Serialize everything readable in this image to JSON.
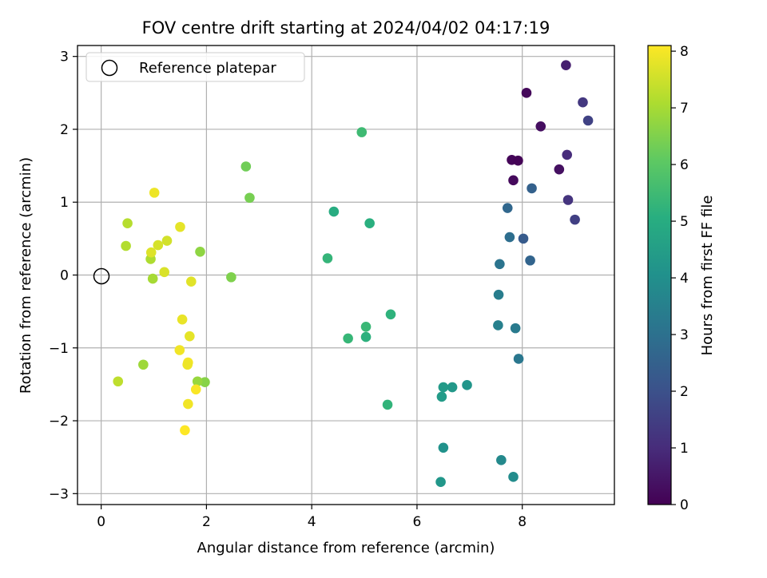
{
  "chart_data": {
    "type": "scatter",
    "title": "FOV centre drift starting at 2024/04/02 04:17:19",
    "xlabel": "Angular distance from reference (arcmin)",
    "ylabel": "Rotation from reference (arcmin)",
    "xlim": [
      -0.45,
      9.75
    ],
    "ylim": [
      -3.15,
      3.15
    ],
    "xticks": [
      0,
      2,
      4,
      6,
      8
    ],
    "yticks": [
      -3,
      -2,
      -1,
      0,
      1,
      2,
      3
    ],
    "grid": true,
    "legend": {
      "placement": "upper-left",
      "entries": [
        "Reference platepar"
      ]
    },
    "reference_point": {
      "label": "Reference platepar",
      "x": 0,
      "y": 0
    },
    "colorbar": {
      "label": "Hours from first FF file",
      "colormap": "viridis",
      "range": [
        0,
        8.1
      ],
      "ticks": [
        0,
        1,
        2,
        3,
        4,
        5,
        6,
        7,
        8
      ]
    },
    "points": [
      {
        "x": 8.08,
        "y": 2.5,
        "h": 0.15
      },
      {
        "x": 8.35,
        "y": 2.04,
        "h": 0.3
      },
      {
        "x": 7.8,
        "y": 1.58,
        "h": 0.1
      },
      {
        "x": 7.92,
        "y": 1.57,
        "h": 0.05
      },
      {
        "x": 7.83,
        "y": 1.3,
        "h": 0.2
      },
      {
        "x": 8.7,
        "y": 1.45,
        "h": 0.35
      },
      {
        "x": 8.83,
        "y": 2.88,
        "h": 0.7
      },
      {
        "x": 9.15,
        "y": 2.37,
        "h": 1.3
      },
      {
        "x": 9.25,
        "y": 2.12,
        "h": 1.6
      },
      {
        "x": 8.85,
        "y": 1.65,
        "h": 1.0
      },
      {
        "x": 8.87,
        "y": 1.03,
        "h": 1.2
      },
      {
        "x": 9.0,
        "y": 0.76,
        "h": 1.5
      },
      {
        "x": 8.18,
        "y": 1.19,
        "h": 2.5
      },
      {
        "x": 7.72,
        "y": 0.92,
        "h": 2.7
      },
      {
        "x": 7.76,
        "y": 0.52,
        "h": 2.9
      },
      {
        "x": 8.02,
        "y": 0.5,
        "h": 2.3
      },
      {
        "x": 8.15,
        "y": 0.2,
        "h": 2.6
      },
      {
        "x": 7.57,
        "y": 0.15,
        "h": 3.1
      },
      {
        "x": 7.55,
        "y": -0.27,
        "h": 3.4
      },
      {
        "x": 7.54,
        "y": -0.69,
        "h": 3.5
      },
      {
        "x": 7.87,
        "y": -0.73,
        "h": 3.3
      },
      {
        "x": 7.93,
        "y": -1.15,
        "h": 3.2
      },
      {
        "x": 6.95,
        "y": -1.51,
        "h": 4.2
      },
      {
        "x": 6.67,
        "y": -1.54,
        "h": 4.3
      },
      {
        "x": 6.5,
        "y": -1.54,
        "h": 4.35
      },
      {
        "x": 6.47,
        "y": -1.67,
        "h": 4.4
      },
      {
        "x": 6.5,
        "y": -2.37,
        "h": 4.1
      },
      {
        "x": 6.45,
        "y": -2.84,
        "h": 4.25
      },
      {
        "x": 7.6,
        "y": -2.54,
        "h": 3.8
      },
      {
        "x": 7.83,
        "y": -2.77,
        "h": 3.9
      },
      {
        "x": 4.95,
        "y": 1.96,
        "h": 5.5
      },
      {
        "x": 4.42,
        "y": 0.87,
        "h": 5.0
      },
      {
        "x": 5.1,
        "y": 0.71,
        "h": 5.1
      },
      {
        "x": 4.3,
        "y": 0.23,
        "h": 5.3
      },
      {
        "x": 5.5,
        "y": -0.54,
        "h": 5.2
      },
      {
        "x": 5.03,
        "y": -0.71,
        "h": 5.4
      },
      {
        "x": 5.03,
        "y": -0.85,
        "h": 5.15
      },
      {
        "x": 4.69,
        "y": -0.87,
        "h": 5.35
      },
      {
        "x": 5.44,
        "y": -1.78,
        "h": 5.25
      },
      {
        "x": 2.75,
        "y": 1.49,
        "h": 6.3
      },
      {
        "x": 2.82,
        "y": 1.06,
        "h": 6.4
      },
      {
        "x": 2.47,
        "y": -0.03,
        "h": 6.5
      },
      {
        "x": 1.88,
        "y": 0.32,
        "h": 6.7
      },
      {
        "x": 1.97,
        "y": -1.47,
        "h": 6.6
      },
      {
        "x": 1.83,
        "y": -1.46,
        "h": 6.8
      },
      {
        "x": 0.8,
        "y": -1.23,
        "h": 6.9
      },
      {
        "x": 0.5,
        "y": 0.71,
        "h": 7.2
      },
      {
        "x": 0.47,
        "y": 0.4,
        "h": 7.15
      },
      {
        "x": 0.94,
        "y": 0.22,
        "h": 7.1
      },
      {
        "x": 0.98,
        "y": -0.05,
        "h": 7.0
      },
      {
        "x": 0.32,
        "y": -1.46,
        "h": 7.3
      },
      {
        "x": 1.01,
        "y": 1.13,
        "h": 7.9
      },
      {
        "x": 1.5,
        "y": 0.66,
        "h": 7.8
      },
      {
        "x": 0.95,
        "y": 0.31,
        "h": 7.7
      },
      {
        "x": 1.08,
        "y": 0.41,
        "h": 7.6
      },
      {
        "x": 1.25,
        "y": 0.47,
        "h": 7.55
      },
      {
        "x": 1.2,
        "y": 0.04,
        "h": 7.65
      },
      {
        "x": 1.71,
        "y": -0.09,
        "h": 7.75
      },
      {
        "x": 1.54,
        "y": -0.61,
        "h": 7.85
      },
      {
        "x": 1.68,
        "y": -0.84,
        "h": 7.8
      },
      {
        "x": 1.49,
        "y": -1.03,
        "h": 7.95
      },
      {
        "x": 1.65,
        "y": -1.2,
        "h": 8.0
      },
      {
        "x": 1.64,
        "y": -1.23,
        "h": 7.9
      },
      {
        "x": 1.8,
        "y": -1.57,
        "h": 8.05
      },
      {
        "x": 1.65,
        "y": -1.77,
        "h": 7.95
      },
      {
        "x": 1.59,
        "y": -2.13,
        "h": 8.1
      }
    ]
  }
}
